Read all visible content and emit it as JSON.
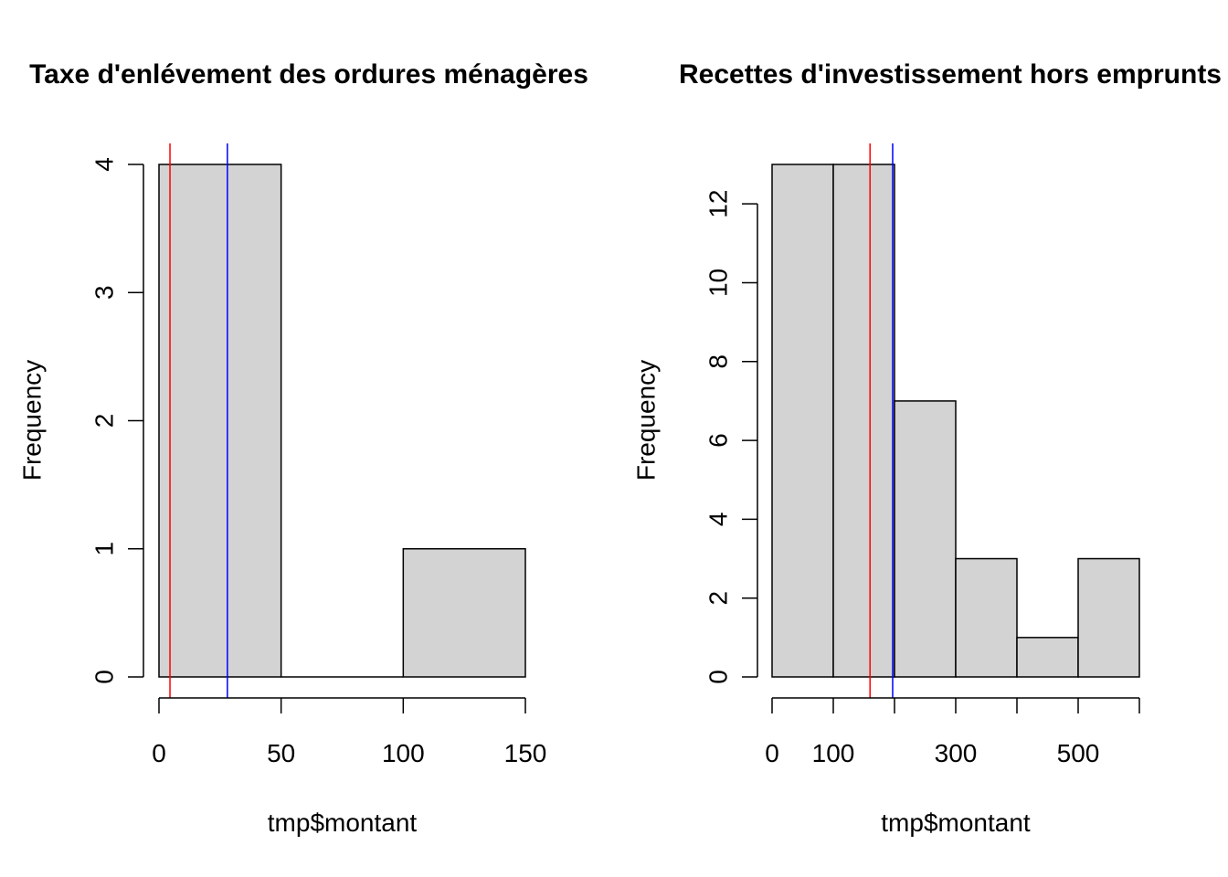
{
  "chart_data": [
    {
      "type": "bar",
      "subtype": "histogram",
      "title": "Taxe d'enlévement des ordures ménagères",
      "xlabel": "tmp$montant",
      "ylabel": "Frequency",
      "breaks": [
        0,
        50,
        100,
        150
      ],
      "values": [
        4,
        0,
        1
      ],
      "xlim": [
        0,
        150
      ],
      "ylim": [
        0,
        4
      ],
      "xticks": [
        0,
        50,
        100,
        150
      ],
      "yticks": [
        0,
        1,
        2,
        3,
        4
      ],
      "vlines": [
        {
          "x": 4.5,
          "color": "#ff0000"
        },
        {
          "x": 28,
          "color": "#0000ff"
        }
      ],
      "bar_color": "#d3d3d3"
    },
    {
      "type": "bar",
      "subtype": "histogram",
      "title": "Recettes d'investissement hors emprunts",
      "xlabel": "tmp$montant",
      "ylabel": "Frequency",
      "breaks": [
        0,
        100,
        200,
        300,
        400,
        500,
        600
      ],
      "values": [
        13,
        13,
        7,
        3,
        1,
        3
      ],
      "xlim": [
        0,
        600
      ],
      "ylim": [
        0,
        13
      ],
      "xticks": [
        0,
        100,
        200,
        300,
        400,
        500,
        600
      ],
      "xticklabels": [
        "0",
        "100",
        "",
        "300",
        "",
        "500",
        ""
      ],
      "yticks": [
        0,
        2,
        4,
        6,
        8,
        10,
        12
      ],
      "vlines": [
        {
          "x": 160,
          "color": "#ff0000"
        },
        {
          "x": 197,
          "color": "#0000ff"
        }
      ],
      "bar_color": "#d3d3d3"
    }
  ]
}
